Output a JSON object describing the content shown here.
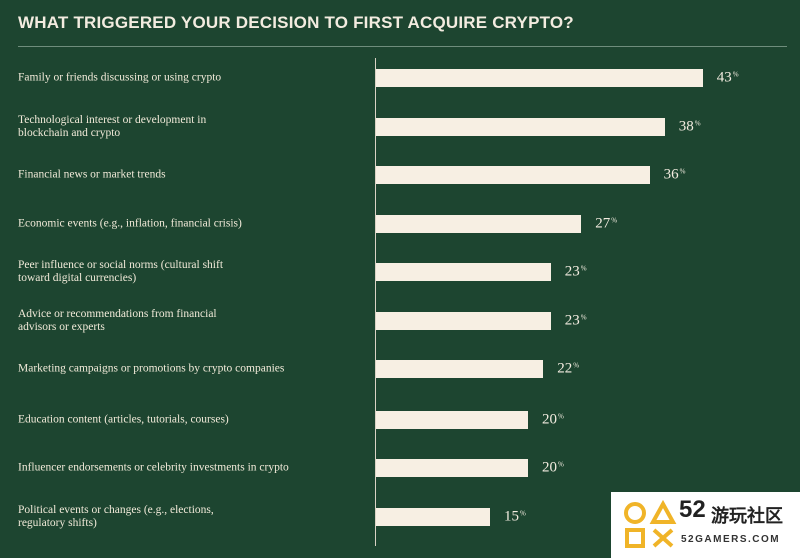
{
  "chart_data": {
    "type": "bar",
    "orientation": "horizontal",
    "title": "WHAT TRIGGERED YOUR DECISION TO FIRST ACQUIRE CRYPTO?",
    "categories": [
      "Family or friends discussing or using crypto",
      "Technological interest or development in blockchain and crypto",
      "Financial news or market trends",
      "Economic events (e.g., inflation, financial crisis)",
      "Peer influence or social norms (cultural shift toward digital currencies)",
      "Advice or recommendations from financial advisors or experts",
      "Marketing campaigns or promotions by crypto companies",
      "Education content (articles, tutorials, courses)",
      "Influencer endorsements or celebrity investments in crypto",
      "Political events or changes (e.g., elections, regulatory shifts)"
    ],
    "values": [
      43,
      38,
      36,
      27,
      23,
      23,
      22,
      20,
      20,
      15
    ],
    "value_suffix": "%",
    "xlim": [
      0,
      50
    ],
    "grid": false,
    "legend": "none",
    "colors": {
      "background": "#1d4530",
      "bar": "#f7efe3",
      "text": "#f3ece0"
    }
  },
  "watermark": {
    "number": "52",
    "chinese": "游玩社区",
    "english": "52GAMERS.COM"
  }
}
